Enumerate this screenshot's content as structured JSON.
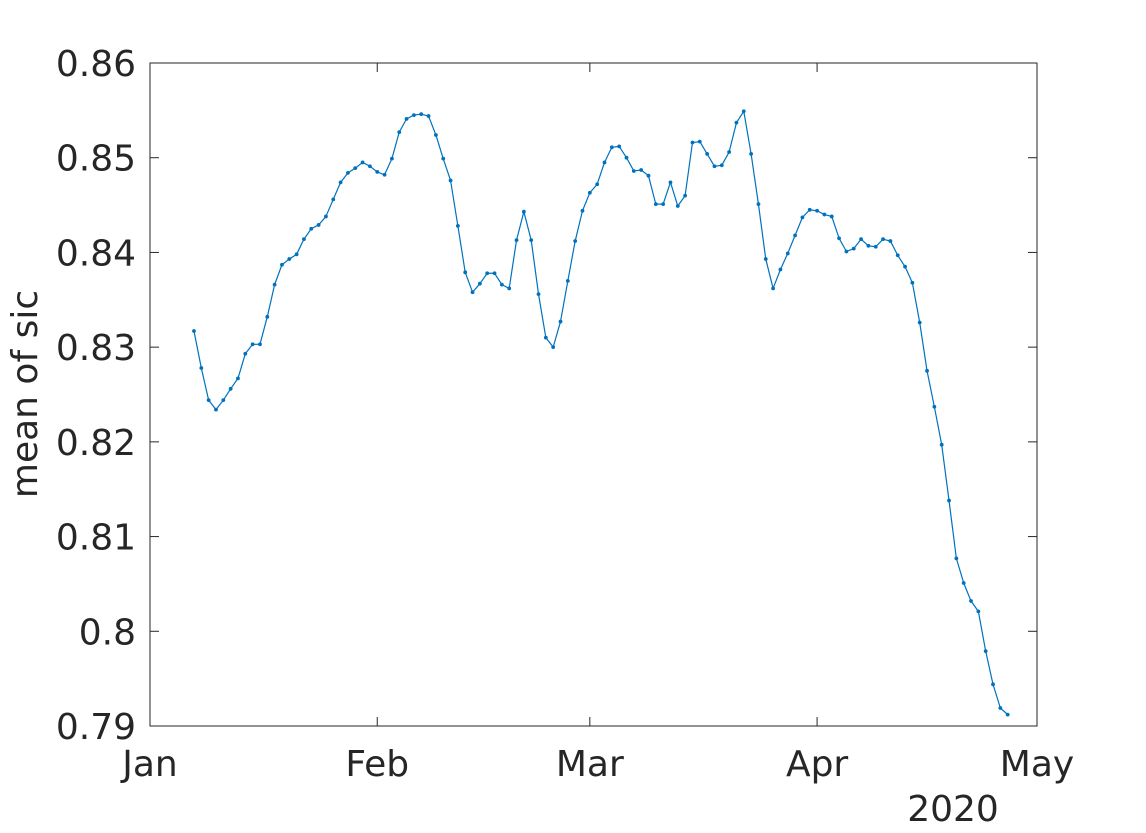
{
  "chart_data": {
    "type": "line",
    "title": "",
    "xlabel": "",
    "ylabel": "mean of sic",
    "xlim": [
      "2020-01-01",
      "2020-05-01"
    ],
    "ylim": [
      0.79,
      0.86
    ],
    "x_ticks": [
      {
        "date": "2020-01-01",
        "label": "Jan"
      },
      {
        "date": "2020-02-01",
        "label": "Feb"
      },
      {
        "date": "2020-03-01",
        "label": "Mar"
      },
      {
        "date": "2020-04-01",
        "label": "Apr"
      },
      {
        "date": "2020-05-01",
        "label": "May"
      }
    ],
    "x_year_label": "2020",
    "y_ticks": [
      {
        "value": 0.79,
        "label": "0.79"
      },
      {
        "value": 0.8,
        "label": "0.8"
      },
      {
        "value": 0.81,
        "label": "0.81"
      },
      {
        "value": 0.82,
        "label": "0.82"
      },
      {
        "value": 0.83,
        "label": "0.83"
      },
      {
        "value": 0.84,
        "label": "0.84"
      },
      {
        "value": 0.85,
        "label": "0.85"
      },
      {
        "value": 0.86,
        "label": "0.86"
      }
    ],
    "grid": false,
    "series_color": "#0072BD",
    "series": [
      {
        "x_start": "2020-01-07",
        "x_step_days": 1,
        "values": [
          0.8317,
          0.8278,
          0.8244,
          0.8234,
          0.8244,
          0.8256,
          0.8267,
          0.8293,
          0.8303,
          0.8303,
          0.8332,
          0.8366,
          0.8387,
          0.8393,
          0.8398,
          0.8414,
          0.8425,
          0.8429,
          0.8438,
          0.8456,
          0.8474,
          0.8484,
          0.8489,
          0.8495,
          0.8491,
          0.8485,
          0.8482,
          0.8499,
          0.8527,
          0.8541,
          0.8545,
          0.8546,
          0.8544,
          0.8524,
          0.8499,
          0.8476,
          0.8428,
          0.8379,
          0.8358,
          0.8367,
          0.8378,
          0.8378,
          0.8366,
          0.8362,
          0.8413,
          0.8443,
          0.8413,
          0.8356,
          0.831,
          0.83,
          0.8327,
          0.837,
          0.8412,
          0.8444,
          0.8463,
          0.8472,
          0.8495,
          0.8511,
          0.8512,
          0.85,
          0.8486,
          0.8487,
          0.8481,
          0.8451,
          0.8451,
          0.8474,
          0.8449,
          0.846,
          0.8516,
          0.8517,
          0.8504,
          0.8491,
          0.8492,
          0.8506,
          0.8537,
          0.8549,
          0.8504,
          0.8451,
          0.8393,
          0.8362,
          0.8382,
          0.8399,
          0.8418,
          0.8437,
          0.8445,
          0.8444,
          0.844,
          0.8438,
          0.8415,
          0.8401,
          0.8404,
          0.8414,
          0.8407,
          0.8406,
          0.8414,
          0.8412,
          0.8397,
          0.8385,
          0.8368,
          0.8326,
          0.8275,
          0.8237,
          0.8197,
          0.8138,
          0.8077,
          0.8051,
          0.8032,
          0.8021,
          0.7979,
          0.7944,
          0.7919,
          0.7912
        ]
      }
    ]
  }
}
